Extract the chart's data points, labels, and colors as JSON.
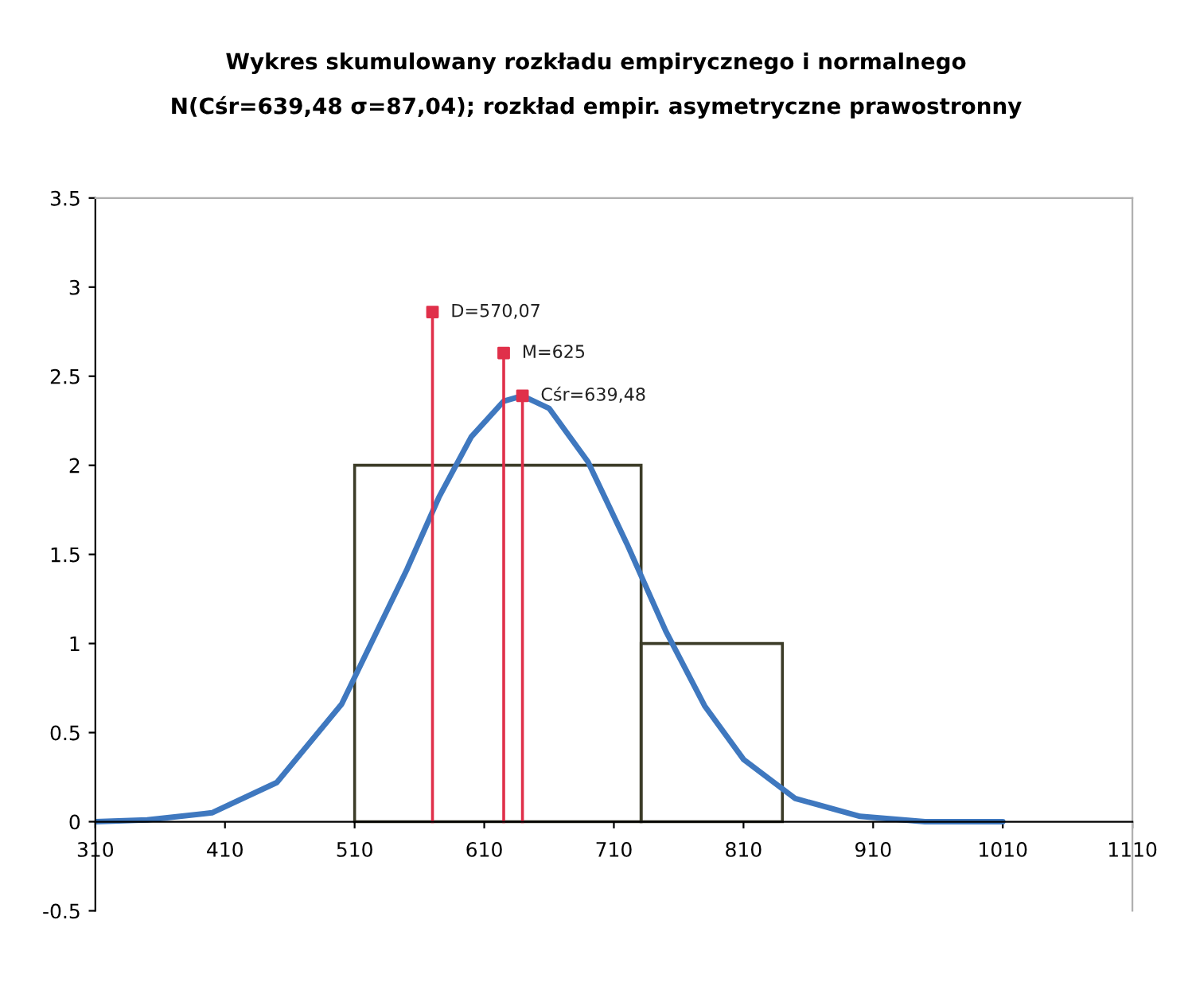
{
  "chart_data": {
    "type": "line",
    "title": "Wykres skumulowany rozkładu empirycznego i normalnego",
    "subtitle": "N(Cśr=639,48 σ=87,04); rozkład empir. asymetryczne prawostronny",
    "xlim": [
      310,
      1110
    ],
    "xticks": [
      310,
      410,
      510,
      610,
      710,
      810,
      910,
      1010,
      1110
    ],
    "ylim": [
      -0.5,
      3.5
    ],
    "yticks": [
      -0.5,
      0,
      0.5,
      1,
      1.5,
      2,
      2.5,
      3,
      3.5
    ],
    "grid": false,
    "legend": false,
    "series": [
      {
        "type": "histogram",
        "bins": [
          510,
          731,
          840
        ],
        "values": [
          2,
          1
        ],
        "color": "#3c3c28"
      },
      {
        "color": "#3f78bf",
        "x": [
          310,
          350,
          400,
          450,
          500,
          550,
          575,
          600,
          625,
          639.48,
          660,
          690,
          720,
          750,
          780,
          810,
          850,
          900,
          950,
          1010
        ],
        "values": [
          0.0,
          0.01,
          0.05,
          0.22,
          0.66,
          1.41,
          1.82,
          2.16,
          2.36,
          2.39,
          2.32,
          2.02,
          1.56,
          1.07,
          0.65,
          0.35,
          0.13,
          0.03,
          0.0,
          0.0
        ]
      },
      {
        "type": "lollipop",
        "name": "Cśr=639,48",
        "color": "#e0304a",
        "x": [
          639.48
        ],
        "values": [
          2.39
        ]
      },
      {
        "type": "lollipop",
        "name": "M=625",
        "color": "#e0304a",
        "x": [
          625
        ],
        "values": [
          2.63
        ]
      },
      {
        "type": "lollipop",
        "name": "D=570,07",
        "color": "#e0304a",
        "x": [
          570.07
        ],
        "values": [
          2.86
        ]
      }
    ]
  }
}
